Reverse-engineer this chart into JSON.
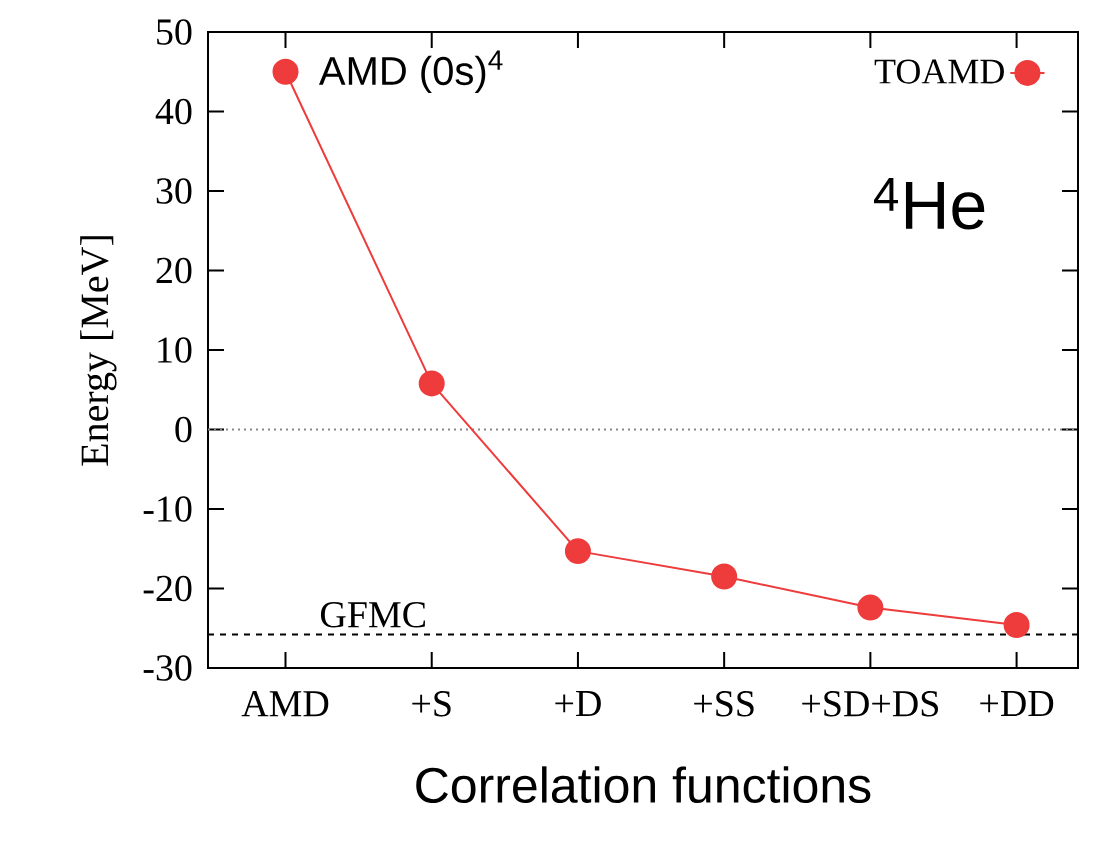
{
  "chart_data": {
    "type": "line",
    "xlabel": "Correlation functions",
    "ylabel": "Energy [MeV]",
    "categories": [
      "AMD",
      "+S",
      "+D",
      "+SS",
      "+SD+DS",
      "+DD"
    ],
    "series": [
      {
        "name": "TOAMD",
        "color": "#ee3b3b",
        "values": [
          45.0,
          5.8,
          -15.3,
          -18.5,
          -22.4,
          -24.6
        ]
      }
    ],
    "ylim": [
      -30,
      50
    ],
    "yticks": [
      -30,
      -20,
      -10,
      0,
      10,
      20,
      30,
      40,
      50
    ],
    "ref_lines": [
      {
        "axis": "y",
        "value": 0,
        "line_style": "dotted",
        "color": "#888888"
      },
      {
        "axis": "y",
        "value": -25.8,
        "label": "GFMC",
        "line_style": "dashed",
        "color": "#000000"
      }
    ],
    "annotations": [
      {
        "text": "AMD (0s)$^{4}$",
        "x": "AMD",
        "y": 45.0
      },
      "$^{4}$He"
    ],
    "legend": "top right",
    "marker": "circle",
    "line_style": "solid",
    "grid": false
  }
}
